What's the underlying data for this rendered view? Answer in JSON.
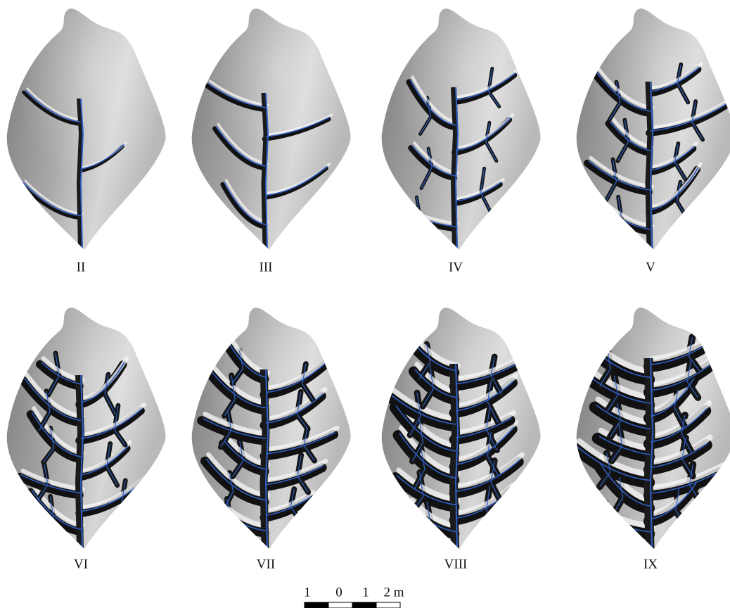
{
  "panels": [
    {
      "label": "II"
    },
    {
      "label": "III"
    },
    {
      "label": "IV"
    },
    {
      "label": "V"
    },
    {
      "label": "VI"
    },
    {
      "label": "VII"
    },
    {
      "label": "VIII"
    },
    {
      "label": "IX"
    }
  ],
  "scale_bar": {
    "labels": [
      "1",
      "0",
      "1",
      "2 m"
    ]
  }
}
